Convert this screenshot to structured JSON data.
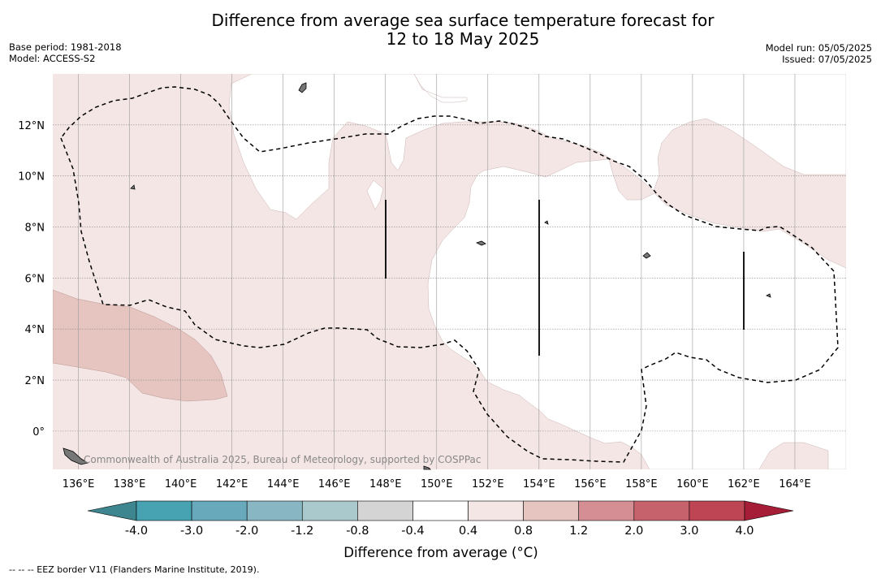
{
  "title": {
    "line1": "Difference from average sea surface temperature forecast for",
    "line2": "12 to 18 May 2025"
  },
  "meta_left": {
    "base_period": "Base period: 1981-2018",
    "model": "Model: ACCESS-S2"
  },
  "meta_right": {
    "model_run": "Model run: 05/05/2025",
    "issued": "Issued: 07/05/2025"
  },
  "watermark": "Commonwealth of Australia 2025, Bureau of Meteorology, supported by COSPPac",
  "map": {
    "lon_range": [
      135,
      166
    ],
    "lat_range": [
      -1.5,
      14
    ],
    "lon_ticks": [
      "136°E",
      "138°E",
      "140°E",
      "142°E",
      "144°E",
      "146°E",
      "148°E",
      "150°E",
      "152°E",
      "154°E",
      "156°E",
      "158°E",
      "160°E",
      "162°E",
      "164°E"
    ],
    "lat_ticks": [
      "0°",
      "2°N",
      "4°N",
      "6°N",
      "8°N",
      "10°N",
      "12°N"
    ],
    "gridlines": true,
    "region_colors": {
      "weak_warm_0.4_to_0.8": "#f4e6e5",
      "warm_0.8_to_1.2": "#e6c4c0",
      "neutral_-0.4_to_0.4": "#ffffff"
    },
    "eez_border": "dashed"
  },
  "colorbar": {
    "tick_labels": [
      "-4.0",
      "-3.0",
      "-2.0",
      "-1.2",
      "-0.8",
      "-0.4",
      "0.4",
      "0.8",
      "1.2",
      "2.0",
      "3.0",
      "4.0"
    ],
    "colors": [
      "#3d868f",
      "#47a3b1",
      "#68aabb",
      "#88b6c2",
      "#aac9cc",
      "#d4d4d4",
      "#ffffff",
      "#f4e6e5",
      "#e6c4c0",
      "#d58e93",
      "#c6626b",
      "#bd4554",
      "#a51d36"
    ],
    "label": "Difference from average (°C)"
  },
  "footnote": "--  --  -- EEZ border V11 (Flanders Marine Institute, 2019)."
}
